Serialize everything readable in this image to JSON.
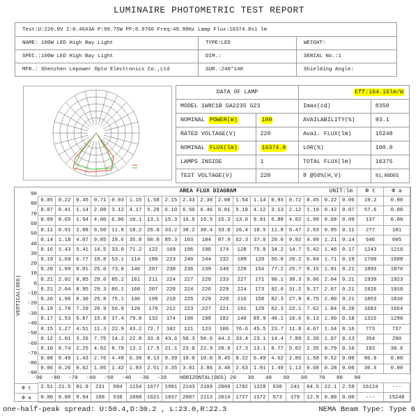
{
  "title": "LUMINAIRE PHOTOMETRIC TEST REPORT",
  "test_line": "Test:U:220.0V I:0.4643A P:99.75W PF:0.9766 Freq:49.99Hz  Lamp Flux:16374.8x1 lm",
  "info": [
    [
      "NAME: 100W LED High Bay Light",
      "TYPE:LED",
      "WEIGHT:"
    ],
    [
      "SPEC.:100W LED High Bay Light",
      "DIM.:",
      "SERIAL No.:1"
    ],
    [
      "MFR.: Shenzhen Lepower Opto Electronics Co.,Ltd",
      "SUR.:240*140",
      "Shielding Angle:"
    ]
  ],
  "lamp": {
    "header": "DATA OF LAMP",
    "eff": "Eff:164.16lm/W",
    "highlight_color": "#ffff00",
    "rows": [
      {
        "prefix": "MODEL 1W8C1B SA2235 G23",
        "hl": "",
        "value": "",
        "label2": "Imax(cd)",
        "value2": "8350"
      },
      {
        "prefix": "NOMINAL ",
        "hl": "POWER(W)",
        "value": "100",
        "value_hl": true,
        "label2": "AVAILABILITY(%)",
        "value2": "93.1"
      },
      {
        "prefix": "RATED VOLTAGE(V)",
        "hl": "",
        "value": "220",
        "label2": "Avai. FLUX(lm)",
        "value2": "15248"
      },
      {
        "prefix": "NOMINAL ",
        "hl": "FLUX(lm)",
        "value": "16374.8",
        "value_hl": true,
        "label2": "LOR(%)",
        "value2": "100.0"
      },
      {
        "prefix": "LAMPS INSIDE",
        "hl": "",
        "value": "1",
        "label2": "TOTAL FLUX(lm)",
        "value2": "16375"
      },
      {
        "prefix": "TEST VOLTAGE(V)",
        "hl": "",
        "value": "220",
        "label2": "θ @50%(H,V)",
        "value2": "91,80DEG"
      }
    ]
  },
  "polar": {
    "series_colors": [
      "#e0402a",
      "#3cc33c"
    ]
  },
  "flux": {
    "title": "AREA FLUX DIAGRAM",
    "unit": "UNIT:lm",
    "phi_t_label": "Φ t",
    "phi_a_label": "Φ a",
    "vertical_label": "VERTICAL(DEG)",
    "horizontal_label": "HORIZONTAL(DEG)",
    "y_ticks": [
      "90",
      "80",
      "70",
      "60",
      "50",
      "40",
      "30",
      "20",
      "10",
      "0",
      "-10",
      "-20",
      "-30",
      "-40",
      "-50",
      "-60",
      "-70",
      "-80",
      "-90"
    ],
    "x_ticks": [
      "-90",
      "-80",
      "-70",
      "-60",
      "-50",
      "-40",
      "-30",
      "-20",
      "",
      "",
      "",
      "20",
      "30",
      "40",
      "50",
      "60",
      "70",
      "80",
      "90"
    ],
    "rows": [
      {
        "v": [
          "0.05",
          "0.22",
          "0.45",
          "0.71",
          "0.93",
          "1.15",
          "1.58",
          "2.15",
          "2.43",
          "2.38",
          "2.08",
          "1.54",
          "1.14",
          "0.93",
          "0.72",
          "0.45",
          "0.22",
          "0.06"
        ],
        "t": "19.2",
        "a": "0.00"
      },
      {
        "v": [
          "0.07",
          "0.41",
          "1.14",
          "2.08",
          "3.12",
          "4.17",
          "5.28",
          "6.10",
          "6.50",
          "6.46",
          "6.01",
          "5.18",
          "4.12",
          "3.13",
          "2.12",
          "1.19",
          "0.42",
          "0.07"
        ],
        "t": "57.6",
        "a": "0.00"
      },
      {
        "v": [
          "0.09",
          "0.65",
          "1.94",
          "4.00",
          "6.96",
          "10.1",
          "13.1",
          "15.3",
          "16.5",
          "16.5",
          "15.3",
          "13.0",
          "9.91",
          "6.88",
          "4.02",
          "1.99",
          "0.68",
          "0.09"
        ],
        "t": "137",
        "a": "0.00"
      },
      {
        "v": [
          "0.11",
          "0.91",
          "2.88",
          "6.50",
          "11.8",
          "18.2",
          "26.0",
          "33.2",
          "38.2",
          "38.4",
          "33.8",
          "26.4",
          "18.5",
          "11.8",
          "6.47",
          "2.93",
          "0.95",
          "0.11"
        ],
        "t": "277",
        "a": "181"
      },
      {
        "v": [
          "0.14",
          "1.18",
          "4.07",
          "9.85",
          "19.6",
          "35.8",
          "60.0",
          "85.3",
          "103",
          "104",
          "87.9",
          "62.3",
          "37.0",
          "20.0",
          "9.92",
          "4.09",
          "1.21",
          "0.14"
        ],
        "t": "646",
        "a": "605"
      },
      {
        "v": [
          "0.16",
          "1.43",
          "5.41",
          "14.5",
          "33.0",
          "71.2",
          "122",
          "169",
          "196",
          "198",
          "174",
          "128",
          "75.0",
          "34.2",
          "14.7",
          "5.42",
          "1.46",
          "0.17"
        ],
        "t": "1243",
        "a": "1216"
      },
      {
        "v": [
          "0.19",
          "1.69",
          "6.77",
          "19.8",
          "53.1",
          "114",
          "180",
          "223",
          "240",
          "244",
          "232",
          "189",
          "120",
          "56.0",
          "20.2",
          "6.84",
          "1.71",
          "0.19"
        ],
        "t": "1709",
        "a": "1688"
      },
      {
        "v": [
          "0.20",
          "1.89",
          "8.01",
          "25.0",
          "73.0",
          "146",
          "207",
          "230",
          "236",
          "239",
          "240",
          "220",
          "154",
          "77.2",
          "25.7",
          "8.15",
          "1.91",
          "0.21"
        ],
        "t": "1893",
        "a": "1876"
      },
      {
        "v": [
          "0.21",
          "2.02",
          "8.85",
          "29.0",
          "85.2",
          "161",
          "211",
          "224",
          "227",
          "229",
          "233",
          "227",
          "171",
          "90.1",
          "30.3",
          "9.06",
          "2.04",
          "0.21"
        ],
        "t": "1939",
        "a": "1923"
      },
      {
        "v": [
          "0.21",
          "2.04",
          "8.95",
          "29.3",
          "86.1",
          "160",
          "207",
          "220",
          "224",
          "226",
          "229",
          "224",
          "173",
          "92.6",
          "31.2",
          "9.27",
          "2.07",
          "0.21"
        ],
        "t": "1926",
        "a": "1910"
      },
      {
        "v": [
          "0.20",
          "1.96",
          "8.30",
          "25.8",
          "75.1",
          "146",
          "199",
          "218",
          "225",
          "229",
          "228",
          "216",
          "158",
          "82.3",
          "27.9",
          "8.75",
          "2.00",
          "0.21"
        ],
        "t": "1853",
        "a": "1836"
      },
      {
        "v": [
          "0.19",
          "1.78",
          "7.20",
          "20.9",
          "56.9",
          "120",
          "179",
          "212",
          "223",
          "227",
          "221",
          "191",
          "129",
          "62.3",
          "22.1",
          "7.62",
          "1.84",
          "0.20"
        ],
        "t": "1683",
        "a": "1664"
      },
      {
        "v": [
          "0.17",
          "1.53",
          "5.87",
          "15.8",
          "37.4",
          "79.8",
          "132",
          "174",
          "196",
          "199",
          "182",
          "140",
          "85.9",
          "40.1",
          "16.6",
          "6.13",
          "1.60",
          "0.18"
        ],
        "t": "1315",
        "a": "1290"
      },
      {
        "v": [
          "0.15",
          "1.27",
          "4.51",
          "11.3",
          "22.9",
          "43.2",
          "72.7",
          "102",
          "121",
          "123",
          "106",
          "76.6",
          "45.5",
          "23.7",
          "11.8",
          "4.67",
          "1.34",
          "0.16"
        ],
        "t": "773",
        "a": "737"
      },
      {
        "v": [
          "0.12",
          "1.01",
          "3.26",
          "7.75",
          "14.2",
          "22.8",
          "33.0",
          "43.6",
          "50.3",
          "50.6",
          "44.2",
          "33.4",
          "23.1",
          "14.4",
          "7.89",
          "3.39",
          "1.07",
          "0.13"
        ],
        "t": "354",
        "a": "290"
      },
      {
        "v": [
          "0.10",
          "0.74",
          "2.25",
          "4.92",
          "8.79",
          "13.2",
          "17.5",
          "21.1",
          "23.0",
          "22.9",
          "20.9",
          "17.3",
          "13.1",
          "8.77",
          "5.02",
          "2.35",
          "0.79",
          "0.10"
        ],
        "t": "183",
        "a": "30.6"
      },
      {
        "v": [
          "0.08",
          "0.49",
          "1.43",
          "2.76",
          "4.49",
          "6.38",
          "8.13",
          "9.39",
          "10.0",
          "10.0",
          "9.45",
          "8.22",
          "6.49",
          "4.62",
          "2.86",
          "1.50",
          "0.52",
          "0.08"
        ],
        "t": "86.9",
        "a": "0.00"
      },
      {
        "v": [
          "0.06",
          "0.26",
          "0.62",
          "1.05",
          "1.42",
          "1.83",
          "2.51",
          "3.35",
          "3.81",
          "3.86",
          "3.48",
          "2.63",
          "1.91",
          "1.49",
          "1.13",
          "0.68",
          "0.28",
          "0.06"
        ],
        "t": "30.4",
        "a": "0.00"
      }
    ],
    "phi_t_row": {
      "v": [
        "2.51",
        "21.5",
        "81.9",
        "231",
        "594",
        "1154",
        "1677",
        "1991",
        "2143",
        "2169",
        "2069",
        "1782",
        "1228",
        "630",
        "241",
        "84.5",
        "22.1",
        "2.59"
      ],
      "t": "16124",
      "a": "---"
    },
    "phi_a_row": {
      "v": [
        "0.00",
        "0.00",
        "9.94",
        "168",
        "536",
        "1098",
        "1621",
        "1937",
        "2087",
        "2113",
        "2014",
        "1727",
        "1172",
        "573",
        "179",
        "12.9",
        "0.00",
        "0.00"
      ],
      "t": "---",
      "a": "15248"
    }
  },
  "footer": {
    "spread": "one-half-peak spread: U:50.4,D:30.2 , L:23.0,R:22.3",
    "nema": "NEMA Beam Type: Type 6"
  }
}
